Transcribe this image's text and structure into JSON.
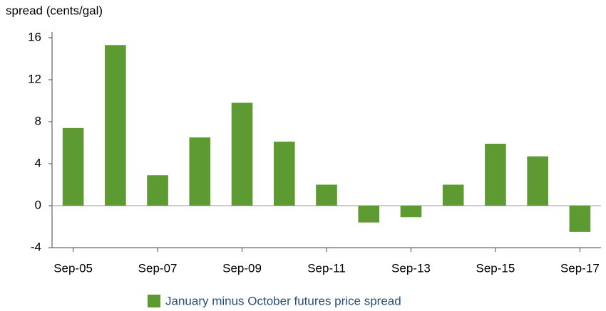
{
  "chart_data": {
    "type": "bar",
    "y_axis_label": "spread (cents/gal)",
    "categories": [
      "Sep-05",
      null,
      "Sep-07",
      null,
      "Sep-09",
      null,
      "Sep-11",
      null,
      "Sep-13",
      null,
      "Sep-15",
      null,
      "Sep-17"
    ],
    "series": [
      {
        "name": "January minus October futures price spread",
        "color": "#5e9a32",
        "values": [
          7.4,
          15.3,
          2.9,
          6.5,
          9.8,
          6.1,
          2.0,
          -1.6,
          -1.1,
          2.0,
          5.9,
          4.7,
          -2.5
        ]
      }
    ],
    "ylim": [
      -4,
      16
    ],
    "yticks": [
      -4,
      0,
      4,
      8,
      12,
      16
    ],
    "grid": false,
    "legend": "bottom"
  }
}
